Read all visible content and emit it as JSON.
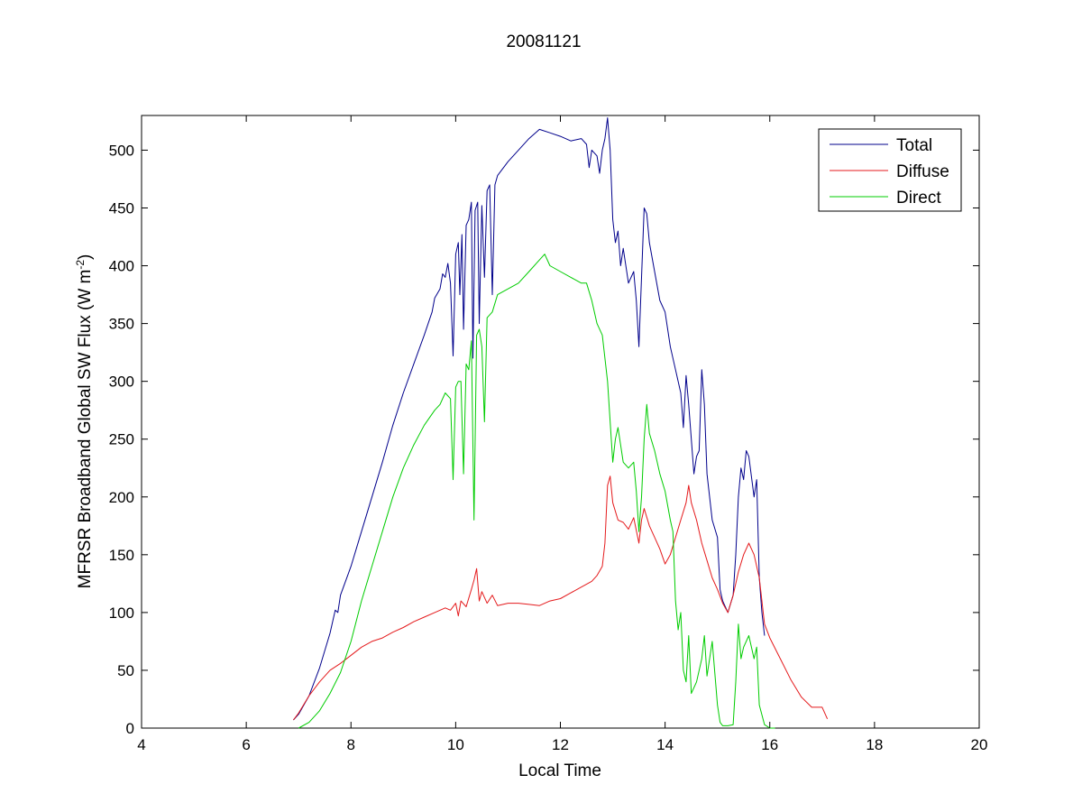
{
  "chart_data": {
    "type": "line",
    "title": "20081121",
    "xlabel": "Local Time",
    "ylabel_main": "MFRSR Broadband Global SW Flux (W m",
    "ylabel_sup": "-2",
    "ylabel_close": ")",
    "xlim": [
      4,
      20
    ],
    "ylim": [
      0,
      530
    ],
    "xticks": [
      4,
      6,
      8,
      10,
      12,
      14,
      16,
      18,
      20
    ],
    "yticks": [
      0,
      50,
      100,
      150,
      200,
      250,
      300,
      350,
      400,
      450,
      500
    ],
    "grid": false,
    "legend_position": "top-right",
    "series": [
      {
        "name": "Total",
        "color": "#00008b",
        "points": [
          [
            6.9,
            7
          ],
          [
            7.0,
            12
          ],
          [
            7.2,
            28
          ],
          [
            7.4,
            52
          ],
          [
            7.6,
            82
          ],
          [
            7.7,
            102
          ],
          [
            7.75,
            100
          ],
          [
            7.8,
            115
          ],
          [
            8.0,
            140
          ],
          [
            8.2,
            170
          ],
          [
            8.4,
            200
          ],
          [
            8.6,
            230
          ],
          [
            8.8,
            262
          ],
          [
            9.0,
            290
          ],
          [
            9.2,
            315
          ],
          [
            9.4,
            340
          ],
          [
            9.55,
            360
          ],
          [
            9.6,
            372
          ],
          [
            9.7,
            380
          ],
          [
            9.75,
            393
          ],
          [
            9.8,
            390
          ],
          [
            9.85,
            402
          ],
          [
            9.9,
            385
          ],
          [
            9.95,
            322
          ],
          [
            10.0,
            410
          ],
          [
            10.05,
            420
          ],
          [
            10.08,
            375
          ],
          [
            10.12,
            427
          ],
          [
            10.15,
            345
          ],
          [
            10.2,
            435
          ],
          [
            10.25,
            440
          ],
          [
            10.3,
            455
          ],
          [
            10.33,
            320
          ],
          [
            10.37,
            448
          ],
          [
            10.42,
            455
          ],
          [
            10.45,
            350
          ],
          [
            10.5,
            452
          ],
          [
            10.55,
            390
          ],
          [
            10.6,
            465
          ],
          [
            10.65,
            470
          ],
          [
            10.7,
            375
          ],
          [
            10.75,
            470
          ],
          [
            10.8,
            478
          ],
          [
            11.0,
            490
          ],
          [
            11.2,
            500
          ],
          [
            11.4,
            510
          ],
          [
            11.6,
            518
          ],
          [
            11.8,
            515
          ],
          [
            12.0,
            512
          ],
          [
            12.2,
            508
          ],
          [
            12.4,
            510
          ],
          [
            12.5,
            505
          ],
          [
            12.55,
            485
          ],
          [
            12.6,
            500
          ],
          [
            12.7,
            495
          ],
          [
            12.75,
            480
          ],
          [
            12.8,
            500
          ],
          [
            12.85,
            510
          ],
          [
            12.9,
            528
          ],
          [
            12.95,
            500
          ],
          [
            13.0,
            440
          ],
          [
            13.05,
            420
          ],
          [
            13.1,
            430
          ],
          [
            13.15,
            400
          ],
          [
            13.2,
            415
          ],
          [
            13.3,
            385
          ],
          [
            13.4,
            395
          ],
          [
            13.45,
            370
          ],
          [
            13.5,
            330
          ],
          [
            13.55,
            390
          ],
          [
            13.6,
            450
          ],
          [
            13.65,
            445
          ],
          [
            13.7,
            420
          ],
          [
            13.8,
            395
          ],
          [
            13.9,
            370
          ],
          [
            14.0,
            360
          ],
          [
            14.1,
            330
          ],
          [
            14.2,
            310
          ],
          [
            14.3,
            290
          ],
          [
            14.35,
            260
          ],
          [
            14.4,
            305
          ],
          [
            14.45,
            280
          ],
          [
            14.5,
            250
          ],
          [
            14.55,
            220
          ],
          [
            14.6,
            235
          ],
          [
            14.65,
            240
          ],
          [
            14.7,
            310
          ],
          [
            14.75,
            280
          ],
          [
            14.8,
            220
          ],
          [
            14.9,
            180
          ],
          [
            15.0,
            165
          ],
          [
            15.05,
            120
          ],
          [
            15.1,
            110
          ],
          [
            15.2,
            100
          ],
          [
            15.3,
            115
          ],
          [
            15.35,
            150
          ],
          [
            15.4,
            200
          ],
          [
            15.45,
            225
          ],
          [
            15.5,
            215
          ],
          [
            15.55,
            240
          ],
          [
            15.6,
            235
          ],
          [
            15.7,
            200
          ],
          [
            15.75,
            215
          ],
          [
            15.8,
            130
          ],
          [
            15.85,
            100
          ],
          [
            15.9,
            80
          ]
        ]
      },
      {
        "name": "Diffuse",
        "color": "#e41a1c",
        "points": [
          [
            6.9,
            7
          ],
          [
            7.0,
            13
          ],
          [
            7.2,
            28
          ],
          [
            7.4,
            40
          ],
          [
            7.6,
            50
          ],
          [
            7.8,
            56
          ],
          [
            8.0,
            63
          ],
          [
            8.2,
            70
          ],
          [
            8.4,
            75
          ],
          [
            8.6,
            78
          ],
          [
            8.8,
            83
          ],
          [
            9.0,
            87
          ],
          [
            9.2,
            92
          ],
          [
            9.4,
            96
          ],
          [
            9.6,
            100
          ],
          [
            9.8,
            104
          ],
          [
            9.9,
            102
          ],
          [
            10.0,
            108
          ],
          [
            10.05,
            97
          ],
          [
            10.1,
            110
          ],
          [
            10.2,
            105
          ],
          [
            10.3,
            120
          ],
          [
            10.35,
            128
          ],
          [
            10.4,
            138
          ],
          [
            10.45,
            110
          ],
          [
            10.5,
            118
          ],
          [
            10.6,
            108
          ],
          [
            10.7,
            115
          ],
          [
            10.8,
            106
          ],
          [
            11.0,
            108
          ],
          [
            11.2,
            108
          ],
          [
            11.4,
            107
          ],
          [
            11.6,
            106
          ],
          [
            11.8,
            110
          ],
          [
            12.0,
            112
          ],
          [
            12.2,
            117
          ],
          [
            12.4,
            122
          ],
          [
            12.6,
            127
          ],
          [
            12.7,
            132
          ],
          [
            12.8,
            140
          ],
          [
            12.85,
            160
          ],
          [
            12.9,
            210
          ],
          [
            12.95,
            218
          ],
          [
            13.0,
            195
          ],
          [
            13.1,
            180
          ],
          [
            13.2,
            178
          ],
          [
            13.3,
            172
          ],
          [
            13.4,
            182
          ],
          [
            13.5,
            160
          ],
          [
            13.55,
            180
          ],
          [
            13.6,
            190
          ],
          [
            13.7,
            175
          ],
          [
            13.8,
            165
          ],
          [
            13.9,
            155
          ],
          [
            14.0,
            142
          ],
          [
            14.1,
            150
          ],
          [
            14.2,
            165
          ],
          [
            14.3,
            180
          ],
          [
            14.4,
            195
          ],
          [
            14.45,
            210
          ],
          [
            14.5,
            195
          ],
          [
            14.6,
            180
          ],
          [
            14.7,
            160
          ],
          [
            14.8,
            145
          ],
          [
            14.9,
            130
          ],
          [
            15.0,
            120
          ],
          [
            15.1,
            108
          ],
          [
            15.2,
            100
          ],
          [
            15.3,
            115
          ],
          [
            15.4,
            135
          ],
          [
            15.5,
            150
          ],
          [
            15.6,
            160
          ],
          [
            15.7,
            150
          ],
          [
            15.8,
            130
          ],
          [
            15.9,
            90
          ],
          [
            16.0,
            78
          ],
          [
            16.2,
            60
          ],
          [
            16.4,
            42
          ],
          [
            16.6,
            27
          ],
          [
            16.8,
            18
          ],
          [
            17.0,
            18
          ],
          [
            17.1,
            8
          ]
        ]
      },
      {
        "name": "Direct",
        "color": "#00cc00",
        "points": [
          [
            7.0,
            0
          ],
          [
            7.2,
            5
          ],
          [
            7.4,
            15
          ],
          [
            7.6,
            30
          ],
          [
            7.8,
            48
          ],
          [
            8.0,
            75
          ],
          [
            8.2,
            110
          ],
          [
            8.4,
            140
          ],
          [
            8.6,
            170
          ],
          [
            8.8,
            200
          ],
          [
            9.0,
            225
          ],
          [
            9.2,
            245
          ],
          [
            9.4,
            262
          ],
          [
            9.6,
            275
          ],
          [
            9.7,
            280
          ],
          [
            9.8,
            290
          ],
          [
            9.9,
            285
          ],
          [
            9.95,
            215
          ],
          [
            10.0,
            295
          ],
          [
            10.05,
            300
          ],
          [
            10.1,
            300
          ],
          [
            10.15,
            220
          ],
          [
            10.2,
            315
          ],
          [
            10.25,
            310
          ],
          [
            10.3,
            335
          ],
          [
            10.35,
            180
          ],
          [
            10.4,
            340
          ],
          [
            10.45,
            345
          ],
          [
            10.5,
            330
          ],
          [
            10.55,
            265
          ],
          [
            10.6,
            355
          ],
          [
            10.7,
            360
          ],
          [
            10.8,
            375
          ],
          [
            11.0,
            380
          ],
          [
            11.2,
            385
          ],
          [
            11.4,
            395
          ],
          [
            11.6,
            405
          ],
          [
            11.7,
            410
          ],
          [
            11.8,
            400
          ],
          [
            12.0,
            395
          ],
          [
            12.2,
            390
          ],
          [
            12.4,
            385
          ],
          [
            12.5,
            385
          ],
          [
            12.6,
            370
          ],
          [
            12.7,
            350
          ],
          [
            12.8,
            340
          ],
          [
            12.9,
            300
          ],
          [
            13.0,
            230
          ],
          [
            13.05,
            250
          ],
          [
            13.1,
            260
          ],
          [
            13.2,
            230
          ],
          [
            13.3,
            225
          ],
          [
            13.4,
            230
          ],
          [
            13.45,
            205
          ],
          [
            13.5,
            170
          ],
          [
            13.55,
            200
          ],
          [
            13.6,
            250
          ],
          [
            13.65,
            280
          ],
          [
            13.7,
            255
          ],
          [
            13.8,
            240
          ],
          [
            13.9,
            220
          ],
          [
            14.0,
            205
          ],
          [
            14.1,
            180
          ],
          [
            14.15,
            170
          ],
          [
            14.2,
            110
          ],
          [
            14.25,
            85
          ],
          [
            14.3,
            100
          ],
          [
            14.35,
            50
          ],
          [
            14.4,
            40
          ],
          [
            14.45,
            80
          ],
          [
            14.5,
            30
          ],
          [
            14.6,
            40
          ],
          [
            14.7,
            60
          ],
          [
            14.75,
            80
          ],
          [
            14.8,
            45
          ],
          [
            14.9,
            75
          ],
          [
            15.0,
            20
          ],
          [
            15.05,
            5
          ],
          [
            15.1,
            2
          ],
          [
            15.2,
            2
          ],
          [
            15.3,
            3
          ],
          [
            15.35,
            40
          ],
          [
            15.4,
            90
          ],
          [
            15.45,
            60
          ],
          [
            15.5,
            70
          ],
          [
            15.6,
            80
          ],
          [
            15.7,
            60
          ],
          [
            15.75,
            70
          ],
          [
            15.8,
            20
          ],
          [
            15.9,
            3
          ],
          [
            16.0,
            0
          ],
          [
            16.1,
            0
          ]
        ]
      }
    ]
  }
}
